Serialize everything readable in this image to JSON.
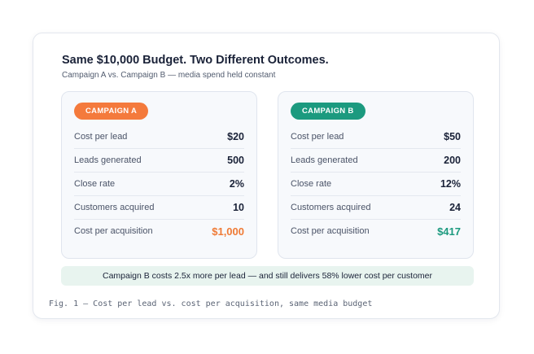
{
  "header": {
    "title": "Same $10,000 Budget. Two Different Outcomes.",
    "subtitle": "Campaign A vs. Campaign B — media spend held constant"
  },
  "campaigns": [
    {
      "badge": "CAMPAIGN A",
      "badge_color": "#f47a3c",
      "metrics": [
        {
          "label": "Cost per lead",
          "value": "$20"
        },
        {
          "label": "Leads generated",
          "value": "500"
        },
        {
          "label": "Close rate",
          "value": "2%"
        },
        {
          "label": "Customers acquired",
          "value": "10"
        },
        {
          "label": "Cost per acquisition",
          "value": "$1,000"
        }
      ]
    },
    {
      "badge": "CAMPAIGN B",
      "badge_color": "#1c9a7f",
      "metrics": [
        {
          "label": "Cost per lead",
          "value": "$50"
        },
        {
          "label": "Leads generated",
          "value": "200"
        },
        {
          "label": "Close rate",
          "value": "12%"
        },
        {
          "label": "Customers acquired",
          "value": "24"
        },
        {
          "label": "Cost per acquisition",
          "value": "$417"
        }
      ]
    }
  ],
  "callout": "Campaign B costs 2.5x more per lead — and still delivers 58% lower cost per customer",
  "caption": "Fig. 1 — Cost per lead vs. cost per acquisition, same media budget"
}
